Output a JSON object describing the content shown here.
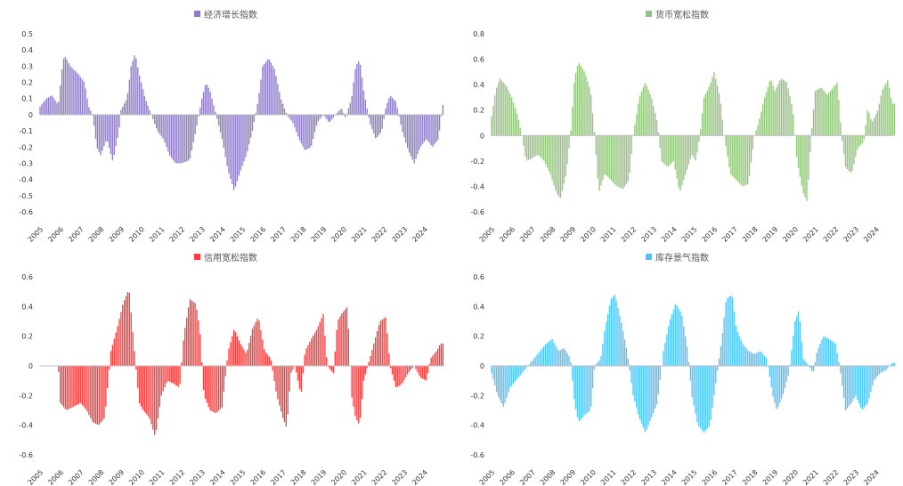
{
  "chart_data": [
    {
      "type": "bar",
      "title": "经济增长指数",
      "series": [
        {
          "name": "经济增长指数",
          "color": "#8e7cc3"
        }
      ],
      "x_tick_labels": [
        "2005",
        "2006",
        "2007",
        "2008",
        "2009",
        "2010",
        "2011",
        "2012",
        "2013",
        "2014",
        "2015",
        "2016",
        "2017",
        "2018",
        "2019",
        "2020",
        "2021",
        "2022",
        "2023",
        "2024"
      ],
      "y_ticks": [
        -0.6,
        -0.5,
        -0.4,
        -0.3,
        -0.2,
        -0.1,
        0,
        0.1,
        0.2,
        0.3,
        0.4,
        0.5
      ],
      "y_tick_labels": [
        "-0.6",
        "-0.5",
        "-0.4",
        "-0.3",
        "-0.2",
        "-0.1",
        "0",
        "0.1",
        "0.2",
        "0.3",
        "0.4",
        "0.5"
      ],
      "ylim": [
        -0.6,
        0.5
      ],
      "x_range": [
        2005,
        2024.9
      ],
      "points": [
        [
          2005,
          0.05
        ],
        [
          2005.3,
          0.1
        ],
        [
          2005.6,
          0.12
        ],
        [
          2005.9,
          0.06
        ],
        [
          2006.1,
          0.3
        ],
        [
          2006.2,
          0.37
        ],
        [
          2006.5,
          0.3
        ],
        [
          2006.9,
          0.25
        ],
        [
          2007.2,
          0.2
        ],
        [
          2007.4,
          0.05
        ],
        [
          2007.6,
          0.0
        ],
        [
          2007.8,
          -0.2
        ],
        [
          2008.0,
          -0.25
        ],
        [
          2008.3,
          -0.15
        ],
        [
          2008.6,
          -0.29
        ],
        [
          2008.9,
          -0.1
        ],
        [
          2009.0,
          0.03
        ],
        [
          2009.3,
          0.1
        ],
        [
          2009.5,
          0.3
        ],
        [
          2009.7,
          0.38
        ],
        [
          2009.9,
          0.25
        ],
        [
          2010.2,
          0.1
        ],
        [
          2010.5,
          0.0
        ],
        [
          2010.8,
          -0.1
        ],
        [
          2011.1,
          -0.15
        ],
        [
          2011.4,
          -0.25
        ],
        [
          2011.7,
          -0.3
        ],
        [
          2012.0,
          -0.3
        ],
        [
          2012.4,
          -0.28
        ],
        [
          2012.7,
          -0.1
        ],
        [
          2013.0,
          0.1
        ],
        [
          2013.2,
          0.2
        ],
        [
          2013.4,
          0.15
        ],
        [
          2013.7,
          0.0
        ],
        [
          2014.0,
          -0.15
        ],
        [
          2014.3,
          -0.35
        ],
        [
          2014.6,
          -0.47
        ],
        [
          2014.9,
          -0.35
        ],
        [
          2015.2,
          -0.25
        ],
        [
          2015.5,
          -0.1
        ],
        [
          2015.8,
          0.1
        ],
        [
          2016.0,
          0.3
        ],
        [
          2016.3,
          0.35
        ],
        [
          2016.6,
          0.28
        ],
        [
          2016.9,
          0.1
        ],
        [
          2017.2,
          0.0
        ],
        [
          2017.5,
          -0.05
        ],
        [
          2017.8,
          -0.15
        ],
        [
          2018.1,
          -0.22
        ],
        [
          2018.4,
          -0.2
        ],
        [
          2018.7,
          -0.05
        ],
        [
          2019.0,
          0.0
        ],
        [
          2019.3,
          -0.05
        ],
        [
          2019.6,
          0.0
        ],
        [
          2019.9,
          0.04
        ],
        [
          2020.1,
          -0.02
        ],
        [
          2020.4,
          0.1
        ],
        [
          2020.6,
          0.3
        ],
        [
          2020.8,
          0.34
        ],
        [
          2021.0,
          0.15
        ],
        [
          2021.3,
          -0.05
        ],
        [
          2021.6,
          -0.15
        ],
        [
          2021.9,
          -0.1
        ],
        [
          2022.1,
          0.05
        ],
        [
          2022.3,
          0.12
        ],
        [
          2022.6,
          0.08
        ],
        [
          2022.9,
          -0.1
        ],
        [
          2023.2,
          -0.22
        ],
        [
          2023.5,
          -0.3
        ],
        [
          2023.8,
          -0.2
        ],
        [
          2024.1,
          -0.15
        ],
        [
          2024.4,
          -0.2
        ],
        [
          2024.7,
          -0.15
        ],
        [
          2024.9,
          0.06
        ]
      ]
    },
    {
      "type": "bar",
      "title": "货币宽松指数",
      "series": [
        {
          "name": "货币宽松指数",
          "color": "#93c47d"
        }
      ],
      "x_tick_labels": [
        "2005",
        "2006",
        "2007",
        "2008",
        "2009",
        "2010",
        "2011",
        "2012",
        "2013",
        "2014",
        "2015",
        "2016",
        "2017",
        "2018",
        "2019",
        "2020",
        "2021",
        "2022",
        "2023",
        "2024"
      ],
      "y_ticks": [
        -0.6,
        -0.4,
        -0.2,
        0,
        0.2,
        0.4,
        0.6,
        0.8
      ],
      "y_tick_labels": [
        "-0.6",
        "-0.4",
        "-0.2",
        "0",
        "0.2",
        "0.4",
        "0.6",
        "0.8"
      ],
      "ylim": [
        -0.6,
        0.8
      ],
      "x_range": [
        2005,
        2024.9
      ],
      "points": [
        [
          2005,
          0.15
        ],
        [
          2005.2,
          0.35
        ],
        [
          2005.4,
          0.45
        ],
        [
          2005.7,
          0.4
        ],
        [
          2006.0,
          0.3
        ],
        [
          2006.3,
          0.15
        ],
        [
          2006.5,
          0.0
        ],
        [
          2006.7,
          -0.2
        ],
        [
          2007.0,
          -0.18
        ],
        [
          2007.3,
          -0.15
        ],
        [
          2007.6,
          -0.2
        ],
        [
          2007.9,
          -0.3
        ],
        [
          2008.2,
          -0.45
        ],
        [
          2008.4,
          -0.5
        ],
        [
          2008.7,
          -0.3
        ],
        [
          2008.9,
          0.0
        ],
        [
          2009.1,
          0.45
        ],
        [
          2009.3,
          0.58
        ],
        [
          2009.6,
          0.5
        ],
        [
          2009.9,
          0.35
        ],
        [
          2010.1,
          0.0
        ],
        [
          2010.3,
          -0.45
        ],
        [
          2010.6,
          -0.3
        ],
        [
          2010.9,
          -0.35
        ],
        [
          2011.2,
          -0.4
        ],
        [
          2011.5,
          -0.42
        ],
        [
          2011.8,
          -0.35
        ],
        [
          2012.0,
          0.0
        ],
        [
          2012.3,
          0.3
        ],
        [
          2012.6,
          0.42
        ],
        [
          2012.9,
          0.3
        ],
        [
          2013.2,
          0.1
        ],
        [
          2013.4,
          -0.2
        ],
        [
          2013.7,
          -0.25
        ],
        [
          2014.0,
          -0.2
        ],
        [
          2014.3,
          -0.45
        ],
        [
          2014.6,
          -0.3
        ],
        [
          2014.9,
          -0.15
        ],
        [
          2015.1,
          -0.2
        ],
        [
          2015.3,
          0.0
        ],
        [
          2015.5,
          0.3
        ],
        [
          2015.8,
          0.4
        ],
        [
          2016.0,
          0.5
        ],
        [
          2016.3,
          0.3
        ],
        [
          2016.5,
          0.0
        ],
        [
          2016.8,
          -0.3
        ],
        [
          2017.1,
          -0.35
        ],
        [
          2017.4,
          -0.4
        ],
        [
          2017.7,
          -0.38
        ],
        [
          2018.0,
          0.0
        ],
        [
          2018.2,
          0.1
        ],
        [
          2018.5,
          0.3
        ],
        [
          2018.8,
          0.45
        ],
        [
          2019.0,
          0.35
        ],
        [
          2019.3,
          0.45
        ],
        [
          2019.6,
          0.42
        ],
        [
          2019.9,
          0.2
        ],
        [
          2020.1,
          -0.2
        ],
        [
          2020.4,
          -0.45
        ],
        [
          2020.6,
          -0.52
        ],
        [
          2020.8,
          0.0
        ],
        [
          2021.0,
          0.35
        ],
        [
          2021.3,
          0.38
        ],
        [
          2021.6,
          0.32
        ],
        [
          2021.9,
          0.38
        ],
        [
          2022.1,
          0.42
        ],
        [
          2022.3,
          0.0
        ],
        [
          2022.5,
          -0.25
        ],
        [
          2022.8,
          -0.3
        ],
        [
          2023.1,
          -0.1
        ],
        [
          2023.4,
          -0.05
        ],
        [
          2023.6,
          0.22
        ],
        [
          2023.8,
          0.1
        ],
        [
          2024.1,
          0.2
        ],
        [
          2024.3,
          0.35
        ],
        [
          2024.6,
          0.44
        ],
        [
          2024.8,
          0.25
        ]
      ]
    },
    {
      "type": "bar",
      "title": "信用宽松指数",
      "series": [
        {
          "name": "信用宽松指数",
          "color": "#ff3b3b"
        }
      ],
      "x_tick_labels": [
        "2005",
        "2006",
        "2007",
        "2008",
        "2009",
        "2010",
        "2011",
        "2012",
        "2013",
        "2014",
        "2015",
        "2016",
        "2017",
        "2018",
        "2019",
        "2020",
        "2021",
        "2022",
        "2023",
        "2024"
      ],
      "y_ticks": [
        -0.6,
        -0.4,
        -0.2,
        0,
        0.2,
        0.4,
        0.6
      ],
      "y_tick_labels": [
        "-0.6",
        "-0.4",
        "-0.2",
        "0",
        "0.2",
        "0.4",
        "0.6"
      ],
      "ylim": [
        -0.6,
        0.6
      ],
      "x_range": [
        2005,
        2024.9
      ],
      "points": [
        [
          2005,
          0.0
        ],
        [
          2005.9,
          0.0
        ],
        [
          2006.0,
          -0.25
        ],
        [
          2006.3,
          -0.3
        ],
        [
          2006.6,
          -0.28
        ],
        [
          2007.0,
          -0.25
        ],
        [
          2007.3,
          -0.3
        ],
        [
          2007.6,
          -0.38
        ],
        [
          2007.9,
          -0.4
        ],
        [
          2008.2,
          -0.35
        ],
        [
          2008.5,
          0.1
        ],
        [
          2008.8,
          0.25
        ],
        [
          2009.1,
          0.42
        ],
        [
          2009.4,
          0.52
        ],
        [
          2009.6,
          0.2
        ],
        [
          2009.9,
          -0.25
        ],
        [
          2010.1,
          -0.3
        ],
        [
          2010.4,
          -0.35
        ],
        [
          2010.7,
          -0.48
        ],
        [
          2011.0,
          -0.2
        ],
        [
          2011.3,
          -0.1
        ],
        [
          2011.6,
          -0.12
        ],
        [
          2011.9,
          -0.15
        ],
        [
          2012.1,
          0.2
        ],
        [
          2012.4,
          0.45
        ],
        [
          2012.7,
          0.42
        ],
        [
          2012.9,
          0.25
        ],
        [
          2013.1,
          -0.2
        ],
        [
          2013.4,
          -0.3
        ],
        [
          2013.7,
          -0.32
        ],
        [
          2014.0,
          -0.28
        ],
        [
          2014.3,
          0.1
        ],
        [
          2014.6,
          0.25
        ],
        [
          2014.9,
          0.15
        ],
        [
          2015.2,
          0.08
        ],
        [
          2015.5,
          0.25
        ],
        [
          2015.8,
          0.33
        ],
        [
          2016.1,
          0.1
        ],
        [
          2016.4,
          0.05
        ],
        [
          2016.7,
          -0.2
        ],
        [
          2017.0,
          -0.35
        ],
        [
          2017.2,
          -0.42
        ],
        [
          2017.4,
          -0.05
        ],
        [
          2017.6,
          0.0
        ],
        [
          2017.9,
          -0.2
        ],
        [
          2018.1,
          0.1
        ],
        [
          2018.4,
          0.18
        ],
        [
          2018.7,
          0.25
        ],
        [
          2019.0,
          0.35
        ],
        [
          2019.2,
          0.0
        ],
        [
          2019.5,
          -0.05
        ],
        [
          2019.7,
          0.3
        ],
        [
          2019.9,
          0.35
        ],
        [
          2020.2,
          0.4
        ],
        [
          2020.4,
          -0.2
        ],
        [
          2020.6,
          -0.35
        ],
        [
          2020.8,
          -0.4
        ],
        [
          2021.0,
          -0.1
        ],
        [
          2021.2,
          0.0
        ],
        [
          2021.5,
          0.15
        ],
        [
          2021.8,
          0.3
        ],
        [
          2022.1,
          0.33
        ],
        [
          2022.3,
          0.0
        ],
        [
          2022.6,
          -0.15
        ],
        [
          2022.9,
          -0.12
        ],
        [
          2023.2,
          -0.05
        ],
        [
          2023.5,
          0.0
        ],
        [
          2023.8,
          -0.08
        ],
        [
          2024.1,
          -0.1
        ],
        [
          2024.3,
          0.05
        ],
        [
          2024.6,
          0.1
        ],
        [
          2024.8,
          0.15
        ]
      ]
    },
    {
      "type": "bar",
      "title": "库存景气指数",
      "series": [
        {
          "name": "库存景气指数",
          "color": "#4fc3f7"
        }
      ],
      "x_tick_labels": [
        "2005",
        "2006",
        "2007",
        "2008",
        "2009",
        "2010",
        "2011",
        "2012",
        "2013",
        "2014",
        "2015",
        "2016",
        "2017",
        "2018",
        "2019",
        "2020",
        "2021",
        "2022",
        "2023",
        "2024"
      ],
      "y_ticks": [
        -0.6,
        -0.4,
        -0.2,
        0,
        0.2,
        0.4,
        0.6
      ],
      "y_tick_labels": [
        "-0.6",
        "-0.4",
        "-0.2",
        "0",
        "0.2",
        "0.4",
        "0.6"
      ],
      "ylim": [
        -0.6,
        0.6
      ],
      "x_range": [
        2005,
        2024.9
      ],
      "points": [
        [
          2005,
          -0.05
        ],
        [
          2005.3,
          -0.2
        ],
        [
          2005.6,
          -0.28
        ],
        [
          2005.9,
          -0.15
        ],
        [
          2006.2,
          -0.1
        ],
        [
          2006.5,
          -0.05
        ],
        [
          2006.8,
          0.0
        ],
        [
          2007.1,
          0.05
        ],
        [
          2007.4,
          0.1
        ],
        [
          2007.7,
          0.15
        ],
        [
          2008.0,
          0.18
        ],
        [
          2008.3,
          0.1
        ],
        [
          2008.6,
          0.12
        ],
        [
          2008.9,
          0.05
        ],
        [
          2009.1,
          -0.25
        ],
        [
          2009.3,
          -0.38
        ],
        [
          2009.6,
          -0.33
        ],
        [
          2009.9,
          -0.3
        ],
        [
          2010.1,
          0.0
        ],
        [
          2010.4,
          0.05
        ],
        [
          2010.6,
          0.25
        ],
        [
          2010.9,
          0.45
        ],
        [
          2011.1,
          0.48
        ],
        [
          2011.4,
          0.3
        ],
        [
          2011.7,
          0.1
        ],
        [
          2012.0,
          -0.2
        ],
        [
          2012.3,
          -0.35
        ],
        [
          2012.6,
          -0.45
        ],
        [
          2012.9,
          -0.35
        ],
        [
          2013.2,
          -0.25
        ],
        [
          2013.5,
          0.1
        ],
        [
          2013.8,
          0.3
        ],
        [
          2014.1,
          0.42
        ],
        [
          2014.4,
          0.35
        ],
        [
          2014.7,
          0.1
        ],
        [
          2014.9,
          -0.2
        ],
        [
          2015.2,
          -0.4
        ],
        [
          2015.5,
          -0.45
        ],
        [
          2015.8,
          -0.4
        ],
        [
          2016.1,
          -0.1
        ],
        [
          2016.4,
          0.2
        ],
        [
          2016.6,
          0.45
        ],
        [
          2016.9,
          0.48
        ],
        [
          2017.1,
          0.25
        ],
        [
          2017.4,
          0.15
        ],
        [
          2017.7,
          0.1
        ],
        [
          2018.0,
          0.08
        ],
        [
          2018.3,
          0.1
        ],
        [
          2018.6,
          0.05
        ],
        [
          2018.9,
          -0.2
        ],
        [
          2019.1,
          -0.3
        ],
        [
          2019.4,
          -0.2
        ],
        [
          2019.7,
          -0.05
        ],
        [
          2020.0,
          0.3
        ],
        [
          2020.2,
          0.38
        ],
        [
          2020.4,
          0.05
        ],
        [
          2020.7,
          0.0
        ],
        [
          2020.9,
          -0.05
        ],
        [
          2021.1,
          0.1
        ],
        [
          2021.4,
          0.2
        ],
        [
          2021.7,
          0.18
        ],
        [
          2022.0,
          0.15
        ],
        [
          2022.2,
          0.0
        ],
        [
          2022.5,
          -0.3
        ],
        [
          2022.8,
          -0.25
        ],
        [
          2023.0,
          -0.2
        ],
        [
          2023.3,
          -0.3
        ],
        [
          2023.6,
          -0.25
        ],
        [
          2023.9,
          -0.1
        ],
        [
          2024.2,
          -0.05
        ],
        [
          2024.5,
          -0.03
        ],
        [
          2024.8,
          0.02
        ]
      ]
    }
  ]
}
